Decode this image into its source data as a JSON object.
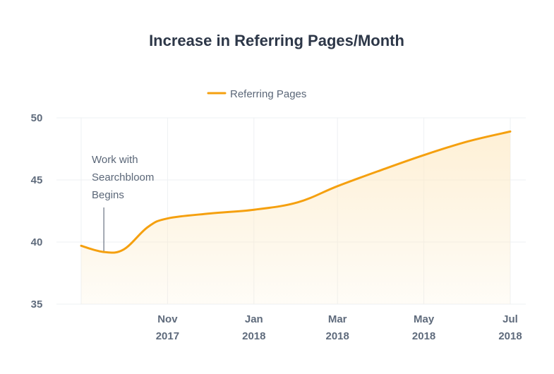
{
  "chart_data": {
    "type": "area",
    "title": "Increase in Referring Pages/Month",
    "xlabel": "",
    "ylabel": "",
    "ylim": [
      35,
      50
    ],
    "yticks": [
      35,
      40,
      45,
      50
    ],
    "xticks": [
      {
        "month": "Nov",
        "year": "2017"
      },
      {
        "month": "Jan",
        "year": "2018"
      },
      {
        "month": "Mar",
        "year": "2018"
      },
      {
        "month": "May",
        "year": "2018"
      },
      {
        "month": "Jul",
        "year": "2018"
      }
    ],
    "grid": true,
    "legend_position": "top-center",
    "series": [
      {
        "name": "Referring Pages",
        "color": "#f5a00f",
        "fill_color": "#fdebc8",
        "points": [
          {
            "x": "2017-09-15",
            "y": 39.7
          },
          {
            "x": "2017-10-01",
            "y": 39.2
          },
          {
            "x": "2017-10-15",
            "y": 39.4
          },
          {
            "x": "2017-11-01",
            "y": 41.2
          },
          {
            "x": "2017-11-15",
            "y": 41.9
          },
          {
            "x": "2017-12-15",
            "y": 42.3
          },
          {
            "x": "2018-01-15",
            "y": 42.6
          },
          {
            "x": "2018-02-15",
            "y": 43.2
          },
          {
            "x": "2018-03-15",
            "y": 44.5
          },
          {
            "x": "2018-04-15",
            "y": 45.8
          },
          {
            "x": "2018-05-15",
            "y": 47.0
          },
          {
            "x": "2018-06-15",
            "y": 48.1
          },
          {
            "x": "2018-07-15",
            "y": 48.9
          }
        ]
      }
    ],
    "annotations": [
      {
        "x": "2017-10-01",
        "lines": [
          "Work with",
          "Searchbloom",
          "Begins"
        ]
      }
    ]
  }
}
